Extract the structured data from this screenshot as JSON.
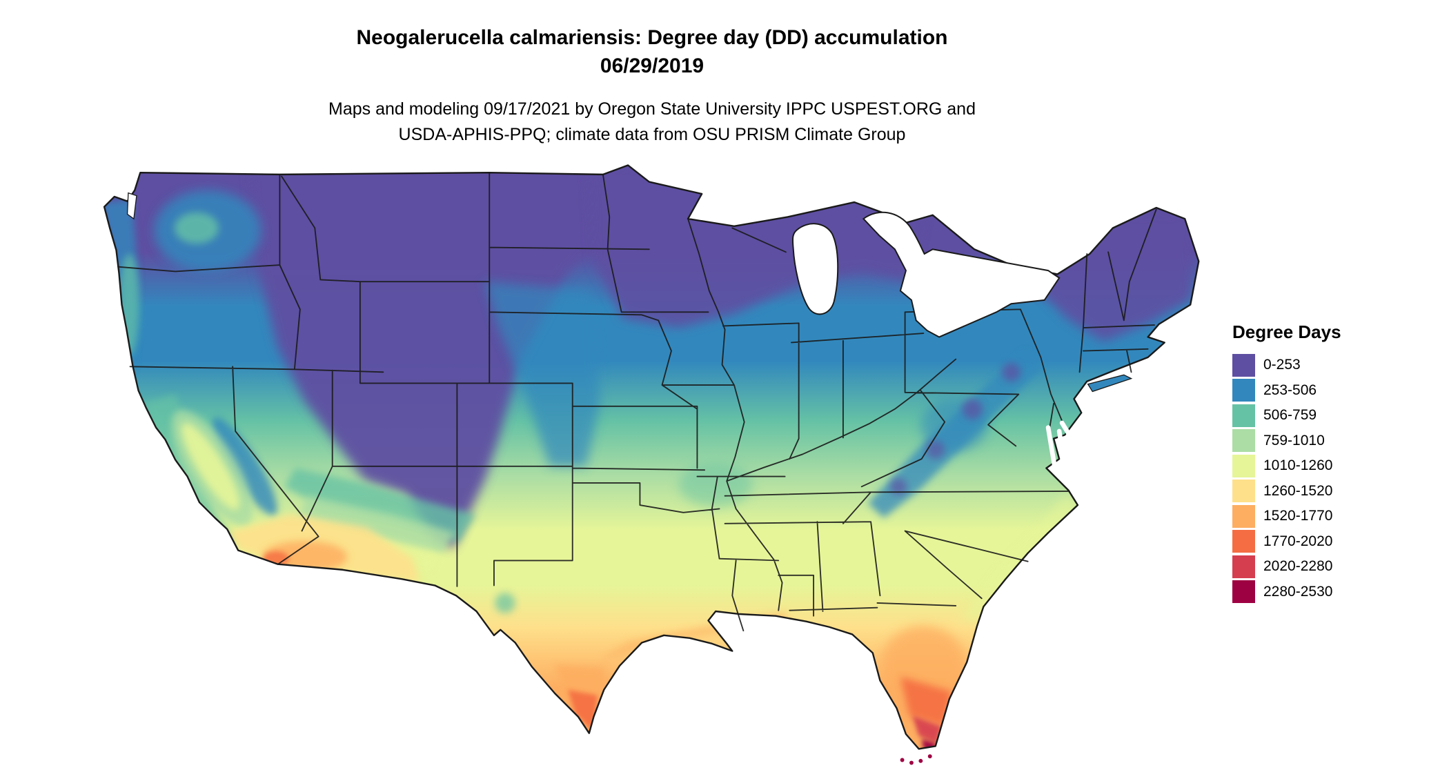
{
  "title": {
    "line1": "Neogalerucella calmariensis: Degree day (DD) accumulation",
    "line2": "06/29/2019"
  },
  "caption": {
    "line1": "Maps and modeling 09/17/2021 by Oregon State University IPPC USPEST.ORG and",
    "line2": "USDA-APHIS-PPQ; climate data from OSU PRISM Climate Group"
  },
  "legend": {
    "title": "Degree Days",
    "items": [
      {
        "label": "0-253",
        "color": "#5E4FA2"
      },
      {
        "label": "253-506",
        "color": "#3288BD"
      },
      {
        "label": "506-759",
        "color": "#66C2A5"
      },
      {
        "label": "759-1010",
        "color": "#ABDDA4"
      },
      {
        "label": "1010-1260",
        "color": "#E6F598"
      },
      {
        "label": "1260-1520",
        "color": "#FEE08B"
      },
      {
        "label": "1520-1770",
        "color": "#FDAE61"
      },
      {
        "label": "1770-2020",
        "color": "#F46D43"
      },
      {
        "label": "2020-2280",
        "color": "#D53E4F"
      },
      {
        "label": "2280-2530",
        "color": "#9E0142"
      }
    ]
  }
}
